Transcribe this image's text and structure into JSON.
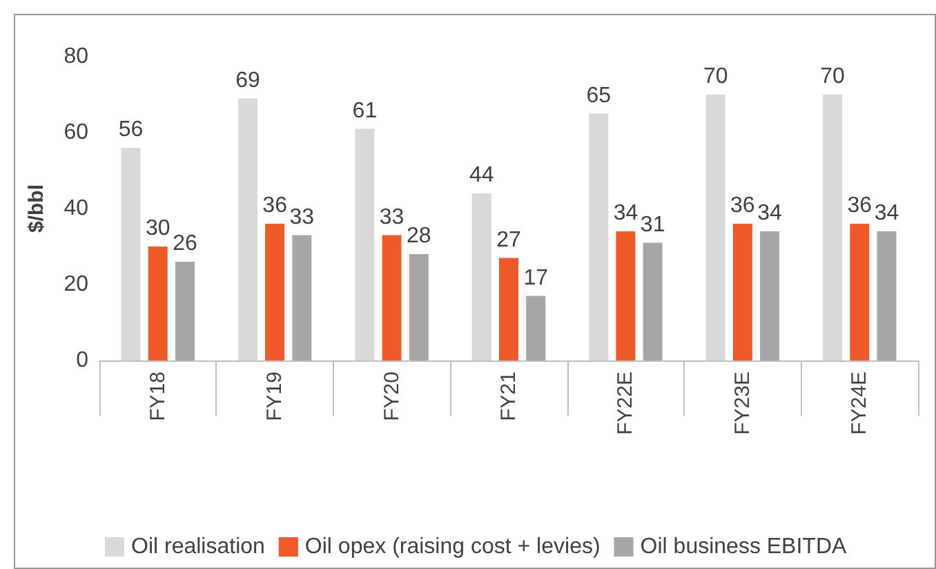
{
  "chart_data": {
    "type": "bar",
    "ylabel": "$/bbl",
    "categories": [
      "FY18",
      "FY19",
      "FY20",
      "FY21",
      "FY22E",
      "FY23E",
      "FY24E"
    ],
    "series": [
      {
        "name": "Oil realisation",
        "color": "#d9d9d9",
        "values": [
          56,
          69,
          61,
          44,
          65,
          70,
          70
        ]
      },
      {
        "name": "Oil opex (raising cost + levies)",
        "color": "#f05a28",
        "values": [
          30,
          36,
          33,
          27,
          34,
          36,
          36
        ]
      },
      {
        "name": "Oil business EBITDA",
        "color": "#a6a6a6",
        "values": [
          26,
          33,
          28,
          17,
          31,
          34,
          34
        ]
      }
    ],
    "ylim": [
      0,
      80
    ],
    "yticks": [
      0,
      20,
      40,
      60,
      80
    ],
    "data_labels": true,
    "legend": "bottom",
    "grid": false
  }
}
